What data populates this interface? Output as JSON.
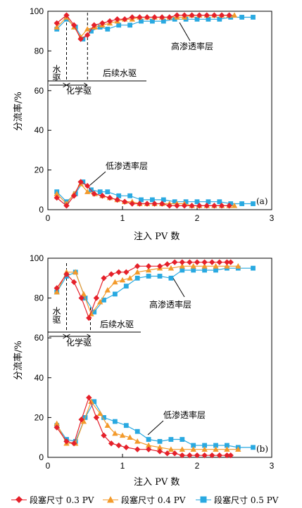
{
  "chart_data": [
    {
      "type": "line",
      "panel_label": "(a)",
      "xlabel": "注入 PV 数",
      "ylabel": "分流率/%",
      "xlim": [
        0,
        3
      ],
      "ylim": [
        0,
        100
      ],
      "xticks": [
        "0",
        "1",
        "2",
        "3"
      ],
      "yticks": [
        "0",
        "20",
        "40",
        "60",
        "80",
        "100"
      ],
      "annotations": {
        "high_layer": "高渗透率层",
        "low_layer": "低渗透率层",
        "water_flood": "水驱",
        "chemical_flood": "化学驱",
        "subsequent_water_flood": "后续水驱"
      },
      "stage_boundaries": [
        0.25,
        0.53
      ],
      "series": [
        {
          "name": "段塞尺寸 0.3 PV",
          "layer": "high",
          "x": [
            0.12,
            0.25,
            0.35,
            0.44,
            0.53,
            0.62,
            0.73,
            0.83,
            0.93,
            1.03,
            1.13,
            1.23,
            1.33,
            1.43,
            1.53,
            1.63,
            1.73,
            1.83,
            1.93,
            2.03,
            2.13,
            2.23,
            2.33,
            2.43
          ],
          "y": [
            94,
            98,
            93,
            86,
            88,
            93,
            94,
            95,
            96,
            96,
            97,
            97,
            97,
            97,
            97,
            97,
            98,
            98,
            98,
            98,
            98,
            98,
            98,
            98
          ]
        },
        {
          "name": "段塞尺寸 0.4 PV",
          "layer": "high",
          "x": [
            0.12,
            0.25,
            0.35,
            0.44,
            0.53,
            0.63,
            0.73,
            0.83,
            0.93,
            1.03,
            1.13,
            1.23,
            1.33,
            1.43,
            1.53,
            1.63,
            1.73,
            1.83,
            1.93,
            2.03,
            2.13,
            2.23,
            2.33,
            2.43,
            2.5
          ],
          "y": [
            92,
            97,
            92,
            87,
            91,
            92,
            93,
            94,
            95,
            96,
            96,
            97,
            97,
            97,
            97,
            97,
            97,
            97,
            98,
            98,
            98,
            98,
            98,
            98,
            98
          ]
        },
        {
          "name": "段塞尺寸 0.5 PV",
          "layer": "high",
          "x": [
            0.12,
            0.25,
            0.37,
            0.47,
            0.58,
            0.7,
            0.8,
            0.95,
            1.1,
            1.25,
            1.4,
            1.55,
            1.7,
            1.85,
            2.0,
            2.15,
            2.3,
            2.45,
            2.6,
            2.75
          ],
          "y": [
            91,
            96,
            92,
            86,
            90,
            92,
            91,
            93,
            93,
            95,
            95,
            95,
            96,
            96,
            96,
            96,
            96,
            97,
            97,
            97
          ]
        },
        {
          "name": "段塞尺寸 0.3 PV",
          "layer": "low",
          "x": [
            0.12,
            0.25,
            0.35,
            0.44,
            0.53,
            0.62,
            0.73,
            0.83,
            0.93,
            1.03,
            1.13,
            1.23,
            1.33,
            1.43,
            1.53,
            1.63,
            1.73,
            1.83,
            1.93,
            2.03,
            2.13,
            2.23,
            2.33,
            2.43
          ],
          "y": [
            6,
            2,
            7,
            14,
            12,
            8,
            7,
            6,
            5,
            4,
            3,
            3,
            3,
            3,
            3,
            2,
            2,
            2,
            2,
            2,
            2,
            2,
            2,
            2
          ]
        },
        {
          "name": "段塞尺寸 0.4 PV",
          "layer": "low",
          "x": [
            0.12,
            0.25,
            0.35,
            0.44,
            0.53,
            0.63,
            0.73,
            0.83,
            0.93,
            1.03,
            1.13,
            1.23,
            1.33,
            1.43,
            1.53,
            1.63,
            1.73,
            1.83,
            1.93,
            2.03,
            2.13,
            2.23,
            2.33,
            2.43,
            2.5
          ],
          "y": [
            8,
            3,
            8,
            13,
            9,
            8,
            7,
            6,
            5,
            4,
            4,
            3,
            3,
            3,
            3,
            3,
            3,
            3,
            2,
            2,
            2,
            2,
            2,
            2,
            2
          ]
        },
        {
          "name": "段塞尺寸 0.5 PV",
          "layer": "low",
          "x": [
            0.12,
            0.25,
            0.37,
            0.47,
            0.58,
            0.7,
            0.8,
            0.95,
            1.1,
            1.25,
            1.4,
            1.55,
            1.7,
            1.85,
            2.0,
            2.15,
            2.3,
            2.45,
            2.6,
            2.75
          ],
          "y": [
            9,
            4,
            8,
            14,
            10,
            9,
            9,
            7,
            7,
            5,
            5,
            5,
            4,
            4,
            4,
            4,
            4,
            3,
            3,
            3
          ]
        }
      ]
    },
    {
      "type": "line",
      "panel_label": "(b)",
      "xlabel": "注入 PV 数",
      "ylabel": "分流率/%",
      "xlim": [
        0,
        3
      ],
      "ylim": [
        0,
        100
      ],
      "xticks": [
        "0",
        "1",
        "2",
        "3"
      ],
      "yticks": [
        "0",
        "20",
        "40",
        "60",
        "80",
        "100"
      ],
      "annotations": {
        "high_layer": "高渗透率层",
        "low_layer": "低渗透率层",
        "water_flood": "水驱",
        "chemical_flood": "化学驱",
        "subsequent_water_flood": "后续水驱"
      },
      "stage_boundaries": [
        0.25,
        0.57
      ],
      "series": [
        {
          "name": "段塞尺寸 0.3 PV",
          "layer": "high",
          "x": [
            0.12,
            0.25,
            0.35,
            0.45,
            0.55,
            0.65,
            0.75,
            0.85,
            0.95,
            1.05,
            1.2,
            1.35,
            1.5,
            1.6,
            1.7,
            1.8,
            1.9,
            2.0,
            2.1,
            2.2,
            2.3,
            2.4,
            2.45
          ],
          "y": [
            85,
            92,
            88,
            80,
            70,
            80,
            90,
            92,
            93,
            93,
            96,
            96,
            96,
            97,
            98,
            98,
            98,
            98,
            98,
            98,
            98,
            98,
            98
          ]
        },
        {
          "name": "段塞尺寸 0.4 PV",
          "layer": "high",
          "x": [
            0.12,
            0.25,
            0.37,
            0.48,
            0.58,
            0.7,
            0.8,
            0.9,
            1.0,
            1.1,
            1.2,
            1.35,
            1.5,
            1.65,
            1.8,
            1.95,
            2.1,
            2.25,
            2.4,
            2.55
          ],
          "y": [
            83,
            93,
            93,
            82,
            72,
            78,
            84,
            88,
            89,
            90,
            93,
            94,
            95,
            95,
            96,
            96,
            96,
            96,
            96,
            96
          ]
        },
        {
          "name": "段塞尺寸 0.5 PV",
          "layer": "high",
          "x": [
            0.12,
            0.25,
            0.37,
            0.5,
            0.62,
            0.75,
            0.9,
            1.05,
            1.2,
            1.35,
            1.5,
            1.65,
            1.8,
            1.95,
            2.1,
            2.25,
            2.4,
            2.55,
            2.75
          ],
          "y": [
            83,
            91,
            93,
            80,
            73,
            79,
            82,
            86,
            90,
            91,
            91,
            90,
            94,
            94,
            94,
            94,
            95,
            95,
            95
          ]
        },
        {
          "name": "段塞尺寸 0.3 PV",
          "layer": "low",
          "x": [
            0.12,
            0.25,
            0.35,
            0.45,
            0.55,
            0.65,
            0.75,
            0.85,
            0.95,
            1.05,
            1.2,
            1.35,
            1.5,
            1.6,
            1.7,
            1.8,
            1.9,
            2.0,
            2.1,
            2.2,
            2.3,
            2.4,
            2.45
          ],
          "y": [
            15,
            8,
            7,
            19,
            30,
            20,
            11,
            7,
            6,
            5,
            4,
            4,
            3,
            2,
            2,
            1,
            1,
            1,
            1,
            1,
            1,
            1,
            1
          ]
        },
        {
          "name": "段塞尺寸 0.4 PV",
          "layer": "low",
          "x": [
            0.12,
            0.25,
            0.37,
            0.48,
            0.58,
            0.7,
            0.8,
            0.9,
            1.0,
            1.1,
            1.2,
            1.35,
            1.5,
            1.65,
            1.8,
            1.95,
            2.1,
            2.25,
            2.4,
            2.55
          ],
          "y": [
            17,
            7,
            7,
            18,
            28,
            22,
            16,
            12,
            11,
            10,
            8,
            6,
            5,
            4,
            4,
            4,
            4,
            4,
            4,
            4
          ]
        },
        {
          "name": "段塞尺寸 0.5 PV",
          "layer": "low",
          "x": [
            0.12,
            0.25,
            0.37,
            0.5,
            0.62,
            0.75,
            0.9,
            1.05,
            1.2,
            1.35,
            1.5,
            1.65,
            1.8,
            1.95,
            2.1,
            2.25,
            2.4,
            2.55,
            2.75
          ],
          "y": [
            16,
            9,
            8,
            20,
            28,
            20,
            18,
            16,
            13,
            9,
            8,
            9,
            9,
            6,
            6,
            6,
            6,
            5,
            5
          ]
        }
      ]
    }
  ],
  "legend": [
    {
      "label": "段塞尺寸 0.3 PV",
      "color": "#e5202a",
      "marker": "diamond"
    },
    {
      "label": "段塞尺寸 0.4 PV",
      "color": "#f39a2b",
      "marker": "triangle"
    },
    {
      "label": "段塞尺寸 0.5 PV",
      "color": "#29a9e1",
      "marker": "square"
    }
  ]
}
